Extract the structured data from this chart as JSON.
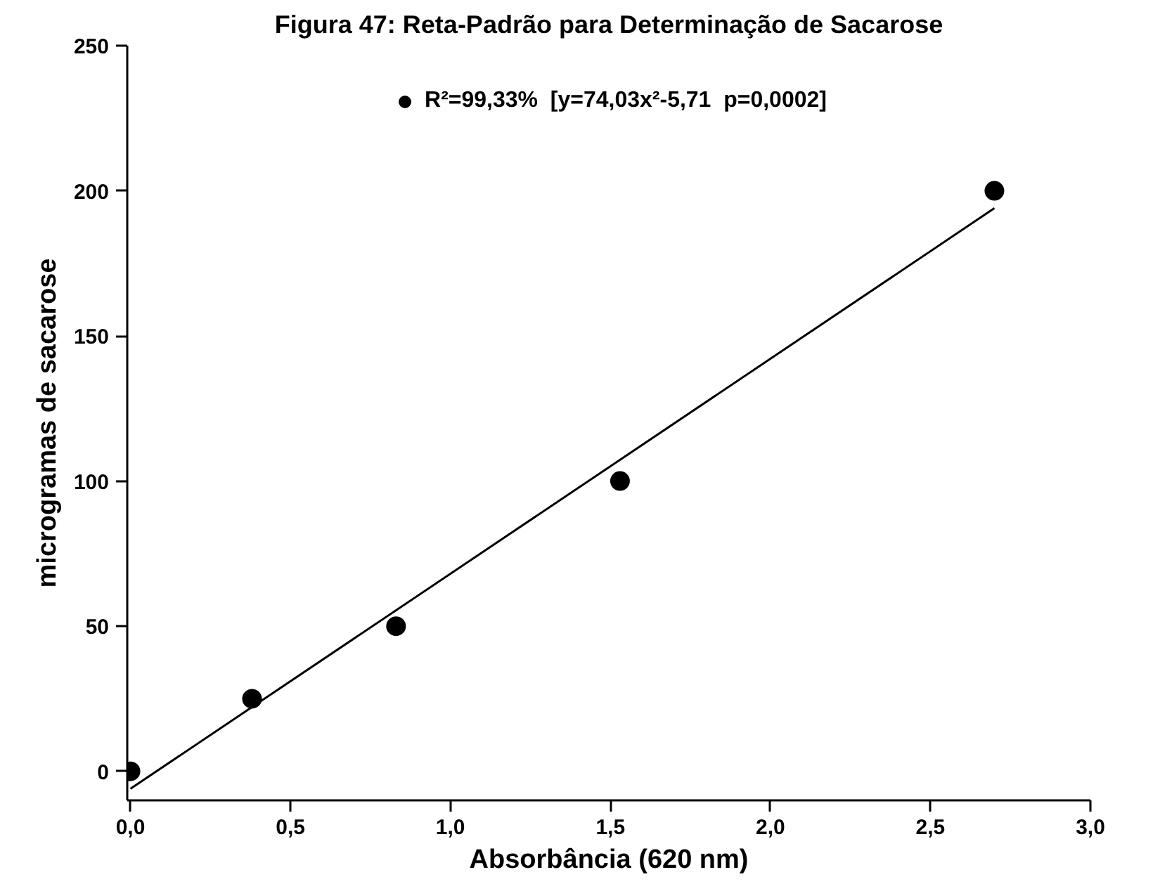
{
  "chart_data": {
    "type": "scatter",
    "title": "Figura 47: Reta-Padrão para Determinação de Sacarose",
    "xlabel": "Absorbância (620 nm)",
    "ylabel": "microgramas de sacarose",
    "x": [
      0.0,
      0.38,
      0.83,
      1.53,
      2.7
    ],
    "series": [
      {
        "name": "R²=99,33%  [y=74,03x²-5,71  p=0,0002]",
        "color": "#000000",
        "marker": "circle",
        "values": [
          0,
          25,
          50,
          100,
          200
        ]
      },
      {
        "type": "line",
        "color": "#000000",
        "marker": "none",
        "x": [
          0.0,
          2.7
        ],
        "values": [
          -6,
          194
        ]
      }
    ],
    "xlim": [
      -0.01,
      3.0
    ],
    "ylim": [
      -10,
      250
    ],
    "xticks": [
      {
        "value": 0,
        "label": "0,0"
      },
      {
        "value": 0.5,
        "label": "0,5"
      },
      {
        "value": 1.0,
        "label": "1,0"
      },
      {
        "value": 1.5,
        "label": "1,5"
      },
      {
        "value": 2.0,
        "label": "2,0"
      },
      {
        "value": 2.5,
        "label": "2,5"
      },
      {
        "value": 3.0,
        "label": "3,0"
      }
    ],
    "yticks": [
      0,
      50,
      100,
      150,
      200,
      250
    ],
    "legend": "top",
    "grid": false
  }
}
